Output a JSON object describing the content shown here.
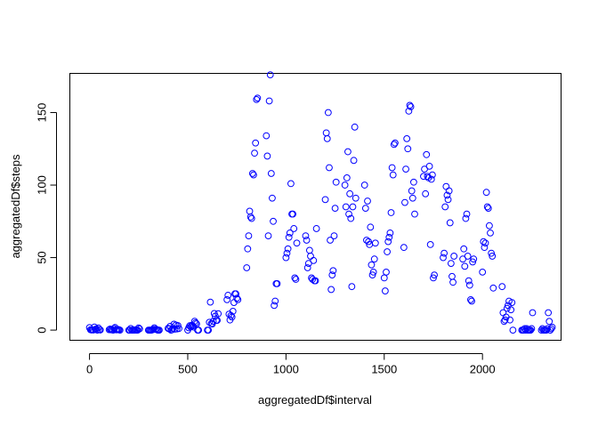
{
  "chart_data": {
    "type": "scatter",
    "title": "",
    "xlabel": "aggregatedDf$interval",
    "ylabel": "aggregatedDf$steps",
    "xlim": [
      -100,
      2400
    ],
    "ylim": [
      -7,
      177
    ],
    "x_ticks": [
      0,
      500,
      1000,
      1500,
      2000
    ],
    "y_ticks": [
      0,
      50,
      100,
      150
    ],
    "x_tick_labels": [
      "0",
      "500",
      "1000",
      "1500",
      "2000"
    ],
    "y_tick_labels": [
      "0",
      "50",
      "100",
      "150"
    ],
    "grid": false,
    "legend": "none",
    "point_color": "#0000ff",
    "points": [
      [
        0,
        1.7
      ],
      [
        5,
        0.3
      ],
      [
        10,
        0.1
      ],
      [
        15,
        0.2
      ],
      [
        20,
        0.1
      ],
      [
        25,
        2.1
      ],
      [
        30,
        0.5
      ],
      [
        35,
        0.9
      ],
      [
        40,
        0
      ],
      [
        45,
        1.5
      ],
      [
        50,
        0.3
      ],
      [
        55,
        0.1
      ],
      [
        100,
        0.3
      ],
      [
        105,
        0.7
      ],
      [
        110,
        0.2
      ],
      [
        115,
        0.3
      ],
      [
        120,
        0
      ],
      [
        125,
        1.1
      ],
      [
        130,
        1.8
      ],
      [
        135,
        0.2
      ],
      [
        140,
        0.2
      ],
      [
        145,
        0.4
      ],
      [
        150,
        0.3
      ],
      [
        155,
        0
      ],
      [
        200,
        0
      ],
      [
        205,
        0
      ],
      [
        210,
        1.1
      ],
      [
        215,
        0
      ],
      [
        220,
        0
      ],
      [
        225,
        0.1
      ],
      [
        230,
        0
      ],
      [
        235,
        0.2
      ],
      [
        240,
        0
      ],
      [
        245,
        0
      ],
      [
        250,
        1.5
      ],
      [
        255,
        0.9
      ],
      [
        300,
        0
      ],
      [
        305,
        0
      ],
      [
        310,
        0
      ],
      [
        315,
        0
      ],
      [
        320,
        0.2
      ],
      [
        325,
        0.6
      ],
      [
        330,
        1.6
      ],
      [
        335,
        0.6
      ],
      [
        340,
        0.5
      ],
      [
        345,
        0.1
      ],
      [
        350,
        0
      ],
      [
        355,
        0
      ],
      [
        400,
        1.2
      ],
      [
        405,
        0.9
      ],
      [
        410,
        2.6
      ],
      [
        415,
        0
      ],
      [
        420,
        0.3
      ],
      [
        425,
        1.1
      ],
      [
        430,
        4.1
      ],
      [
        435,
        0.7
      ],
      [
        440,
        3.5
      ],
      [
        445,
        0.8
      ],
      [
        450,
        3.1
      ],
      [
        455,
        1.1
      ],
      [
        500,
        0
      ],
      [
        505,
        1.6
      ],
      [
        510,
        3
      ],
      [
        515,
        2.2
      ],
      [
        520,
        3.3
      ],
      [
        525,
        3
      ],
      [
        530,
        2.1
      ],
      [
        535,
        6.1
      ],
      [
        540,
        5
      ],
      [
        545,
        4.3
      ],
      [
        550,
        0
      ],
      [
        555,
        0
      ],
      [
        600,
        0
      ],
      [
        605,
        0
      ],
      [
        610,
        5.4
      ],
      [
        615,
        19.3
      ],
      [
        620,
        4.5
      ],
      [
        625,
        4.2
      ],
      [
        630,
        6.1
      ],
      [
        635,
        11.5
      ],
      [
        640,
        9.6
      ],
      [
        645,
        6.7
      ],
      [
        650,
        6.7
      ],
      [
        655,
        11.3
      ],
      [
        700,
        21
      ],
      [
        705,
        24
      ],
      [
        710,
        11
      ],
      [
        715,
        7
      ],
      [
        720,
        10
      ],
      [
        725,
        9
      ],
      [
        730,
        13
      ],
      [
        735,
        19
      ],
      [
        740,
        25
      ],
      [
        745,
        25
      ],
      [
        750,
        22
      ],
      [
        755,
        21
      ],
      [
        800,
        43
      ],
      [
        805,
        56
      ],
      [
        810,
        65
      ],
      [
        815,
        82
      ],
      [
        820,
        78
      ],
      [
        825,
        77
      ],
      [
        830,
        108
      ],
      [
        835,
        107
      ],
      [
        840,
        122
      ],
      [
        845,
        129
      ],
      [
        850,
        159
      ],
      [
        855,
        160
      ],
      [
        900,
        134
      ],
      [
        905,
        120
      ],
      [
        910,
        65
      ],
      [
        915,
        158
      ],
      [
        920,
        176
      ],
      [
        925,
        108
      ],
      [
        930,
        91
      ],
      [
        935,
        75
      ],
      [
        940,
        17
      ],
      [
        945,
        20
      ],
      [
        950,
        32
      ],
      [
        955,
        32
      ],
      [
        1000,
        50
      ],
      [
        1005,
        53
      ],
      [
        1010,
        56
      ],
      [
        1015,
        64
      ],
      [
        1020,
        67
      ],
      [
        1025,
        101
      ],
      [
        1030,
        80
      ],
      [
        1035,
        80
      ],
      [
        1040,
        70
      ],
      [
        1045,
        36
      ],
      [
        1050,
        35
      ],
      [
        1055,
        60
      ],
      [
        1100,
        65
      ],
      [
        1105,
        62
      ],
      [
        1110,
        43
      ],
      [
        1115,
        46
      ],
      [
        1120,
        55
      ],
      [
        1125,
        51
      ],
      [
        1130,
        36
      ],
      [
        1135,
        35
      ],
      [
        1140,
        48
      ],
      [
        1145,
        34
      ],
      [
        1150,
        34
      ],
      [
        1155,
        70
      ],
      [
        1200,
        90
      ],
      [
        1205,
        136
      ],
      [
        1210,
        132
      ],
      [
        1215,
        150
      ],
      [
        1220,
        112
      ],
      [
        1225,
        62
      ],
      [
        1230,
        28
      ],
      [
        1235,
        38
      ],
      [
        1240,
        41
      ],
      [
        1245,
        65
      ],
      [
        1250,
        84
      ],
      [
        1255,
        102
      ],
      [
        1300,
        100
      ],
      [
        1305,
        85
      ],
      [
        1310,
        105
      ],
      [
        1315,
        123
      ],
      [
        1320,
        80
      ],
      [
        1325,
        94
      ],
      [
        1330,
        77
      ],
      [
        1335,
        30
      ],
      [
        1340,
        85
      ],
      [
        1345,
        117
      ],
      [
        1350,
        140
      ],
      [
        1355,
        91
      ],
      [
        1400,
        100
      ],
      [
        1405,
        84
      ],
      [
        1410,
        62
      ],
      [
        1415,
        89
      ],
      [
        1420,
        61
      ],
      [
        1425,
        59
      ],
      [
        1430,
        71
      ],
      [
        1435,
        45
      ],
      [
        1440,
        38
      ],
      [
        1445,
        40
      ],
      [
        1450,
        49
      ],
      [
        1455,
        60
      ],
      [
        1500,
        36
      ],
      [
        1505,
        27
      ],
      [
        1510,
        40
      ],
      [
        1515,
        54
      ],
      [
        1520,
        61
      ],
      [
        1525,
        64
      ],
      [
        1530,
        67
      ],
      [
        1535,
        81
      ],
      [
        1540,
        112
      ],
      [
        1545,
        107
      ],
      [
        1550,
        128
      ],
      [
        1555,
        129
      ],
      [
        1600,
        57
      ],
      [
        1605,
        88
      ],
      [
        1610,
        111
      ],
      [
        1615,
        132
      ],
      [
        1620,
        125
      ],
      [
        1625,
        151
      ],
      [
        1630,
        155
      ],
      [
        1635,
        154
      ],
      [
        1640,
        96
      ],
      [
        1645,
        91
      ],
      [
        1650,
        102
      ],
      [
        1655,
        80
      ],
      [
        1700,
        106
      ],
      [
        1705,
        111
      ],
      [
        1710,
        94
      ],
      [
        1715,
        121
      ],
      [
        1720,
        106
      ],
      [
        1725,
        105
      ],
      [
        1730,
        113
      ],
      [
        1735,
        59
      ],
      [
        1740,
        104
      ],
      [
        1745,
        107
      ],
      [
        1750,
        36
      ],
      [
        1755,
        38
      ],
      [
        1800,
        50
      ],
      [
        1805,
        53
      ],
      [
        1810,
        85
      ],
      [
        1815,
        99
      ],
      [
        1820,
        93
      ],
      [
        1825,
        90
      ],
      [
        1830,
        96
      ],
      [
        1835,
        74
      ],
      [
        1840,
        46
      ],
      [
        1845,
        37
      ],
      [
        1850,
        33
      ],
      [
        1855,
        51
      ],
      [
        1900,
        49
      ],
      [
        1905,
        56
      ],
      [
        1910,
        44
      ],
      [
        1915,
        77
      ],
      [
        1920,
        80
      ],
      [
        1925,
        51
      ],
      [
        1930,
        34
      ],
      [
        1935,
        31
      ],
      [
        1940,
        21
      ],
      [
        1945,
        20
      ],
      [
        1950,
        47
      ],
      [
        1955,
        49
      ],
      [
        2000,
        40
      ],
      [
        2005,
        61
      ],
      [
        2010,
        57
      ],
      [
        2015,
        60
      ],
      [
        2020,
        95
      ],
      [
        2025,
        85
      ],
      [
        2030,
        84
      ],
      [
        2035,
        72
      ],
      [
        2040,
        67
      ],
      [
        2045,
        53
      ],
      [
        2050,
        51
      ],
      [
        2055,
        29
      ],
      [
        2100,
        30
      ],
      [
        2105,
        12
      ],
      [
        2110,
        6
      ],
      [
        2115,
        7
      ],
      [
        2120,
        9
      ],
      [
        2125,
        15
      ],
      [
        2130,
        17
      ],
      [
        2135,
        20
      ],
      [
        2140,
        7
      ],
      [
        2145,
        14
      ],
      [
        2150,
        19
      ],
      [
        2155,
        0
      ],
      [
        2200,
        0
      ],
      [
        2205,
        0
      ],
      [
        2210,
        0
      ],
      [
        2215,
        1
      ],
      [
        2220,
        0
      ],
      [
        2225,
        1
      ],
      [
        2230,
        0
      ],
      [
        2235,
        0
      ],
      [
        2240,
        0
      ],
      [
        2245,
        0
      ],
      [
        2250,
        1
      ],
      [
        2255,
        12
      ],
      [
        2300,
        0
      ],
      [
        2305,
        1
      ],
      [
        2310,
        0
      ],
      [
        2315,
        0
      ],
      [
        2320,
        0
      ],
      [
        2325,
        0
      ],
      [
        2330,
        1
      ],
      [
        2335,
        12
      ],
      [
        2340,
        6
      ],
      [
        2345,
        0
      ],
      [
        2350,
        1
      ],
      [
        2355,
        2
      ]
    ]
  }
}
